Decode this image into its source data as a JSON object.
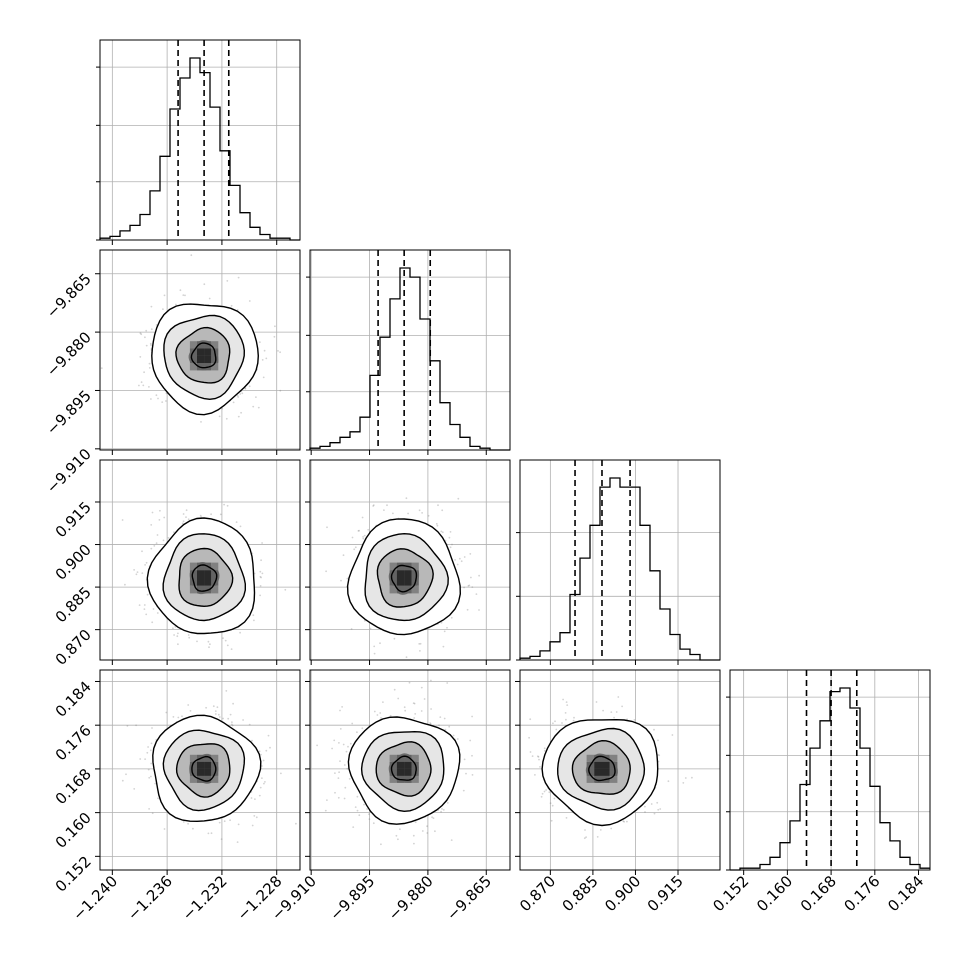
{
  "chart_data": {
    "type": "corner",
    "parameters": [
      {
        "ticks": [
          -1.24,
          -1.236,
          -1.232,
          -1.228
        ],
        "tick_labels": [
          "−1.240",
          "−1.236",
          "−1.232",
          "−1.228"
        ],
        "range": [
          -1.2409,
          -1.2263
        ],
        "median": -1.2333,
        "q16": -1.2352,
        "q84": -1.2315,
        "hist": [
          0.01,
          0.02,
          0.05,
          0.08,
          0.14,
          0.27,
          0.46,
          0.72,
          0.89,
          1.0,
          0.92,
          0.73,
          0.49,
          0.3,
          0.15,
          0.07,
          0.03,
          0.01,
          0.01,
          0.0
        ],
        "hist_yticks": [
          0.0,
          0.32,
          0.63,
          0.95
        ]
      },
      {
        "ticks": [
          -9.91,
          -9.895,
          -9.88,
          -9.865
        ],
        "tick_labels": [
          "−9.910",
          "−9.895",
          "−9.880",
          "−9.865"
        ],
        "range": [
          -9.9103,
          -9.8589
        ],
        "median": -9.8861,
        "q16": -9.8928,
        "q84": -9.8794,
        "hist": [
          0.01,
          0.02,
          0.04,
          0.07,
          0.1,
          0.18,
          0.41,
          0.62,
          0.83,
          1.0,
          0.95,
          0.72,
          0.49,
          0.26,
          0.14,
          0.07,
          0.02,
          0.01,
          0.0,
          0.0
        ],
        "hist_yticks": [
          0.0,
          0.32,
          0.63,
          0.95
        ]
      },
      {
        "ticks": [
          0.87,
          0.885,
          0.9,
          0.915
        ],
        "tick_labels": [
          "0.870",
          "0.885",
          "0.900",
          "0.915"
        ],
        "range": [
          0.8593,
          0.9298
        ],
        "median": 0.8882,
        "q16": 0.8787,
        "q84": 0.8981,
        "hist": [
          0.01,
          0.02,
          0.05,
          0.1,
          0.15,
          0.36,
          0.56,
          0.74,
          0.95,
          1.0,
          0.95,
          0.95,
          0.74,
          0.49,
          0.28,
          0.14,
          0.06,
          0.03,
          0.0,
          0.0
        ],
        "hist_yticks": [
          0.0,
          0.35,
          0.7
        ]
      },
      {
        "ticks": [
          0.152,
          0.16,
          0.168,
          0.176,
          0.184
        ],
        "tick_labels": [
          "0.152",
          "0.160",
          "0.168",
          "0.176",
          "0.184"
        ],
        "range": [
          0.1495,
          0.1861
        ],
        "median": 0.168,
        "q16": 0.1635,
        "q84": 0.1727,
        "hist": [
          0.0,
          0.01,
          0.01,
          0.03,
          0.07,
          0.15,
          0.27,
          0.47,
          0.67,
          0.82,
          0.98,
          1.0,
          0.89,
          0.67,
          0.46,
          0.26,
          0.16,
          0.07,
          0.03,
          0.01
        ],
        "hist_yticks": [
          0.0,
          0.32,
          0.63,
          0.95
        ]
      }
    ],
    "grid": true,
    "quantiles": [
      0.16,
      0.5,
      0.84
    ],
    "contour_levels": [
      "0.5 sigma",
      "1 sigma",
      "1.5 sigma",
      "2 sigma"
    ]
  }
}
